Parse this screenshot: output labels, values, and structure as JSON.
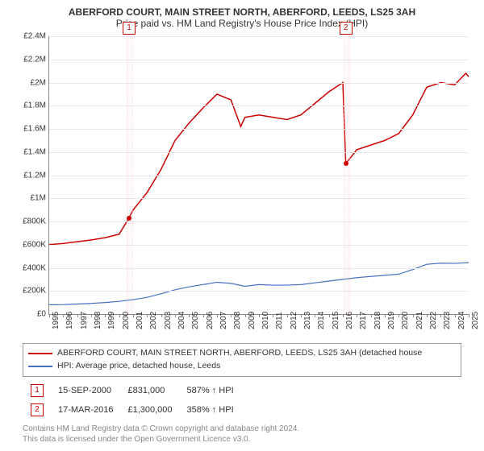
{
  "title": "ABERFORD COURT, MAIN STREET NORTH, ABERFORD, LEEDS, LS25 3AH",
  "subtitle": "Price paid vs. HM Land Registry's House Price Index (HPI)",
  "chart": {
    "type": "line",
    "background_color": "#ffffff",
    "grid_color": "#e8e8e8",
    "axis_color": "#888888",
    "label_fontsize": 10,
    "x": {
      "min": 1995,
      "max": 2025,
      "ticks": [
        1995,
        1996,
        1997,
        1998,
        1999,
        2000,
        2001,
        2002,
        2003,
        2004,
        2005,
        2006,
        2007,
        2008,
        2009,
        2010,
        2011,
        2012,
        2013,
        2014,
        2015,
        2016,
        2017,
        2018,
        2019,
        2020,
        2021,
        2022,
        2023,
        2024,
        2025
      ]
    },
    "y": {
      "min": 0,
      "max": 2400000,
      "ticks": [
        {
          "v": 0,
          "label": "£0"
        },
        {
          "v": 200000,
          "label": "£200K"
        },
        {
          "v": 400000,
          "label": "£400K"
        },
        {
          "v": 600000,
          "label": "£600K"
        },
        {
          "v": 800000,
          "label": "£800K"
        },
        {
          "v": 1000000,
          "label": "£1M"
        },
        {
          "v": 1200000,
          "label": "£1.2M"
        },
        {
          "v": 1400000,
          "label": "£1.4M"
        },
        {
          "v": 1600000,
          "label": "£1.6M"
        },
        {
          "v": 1800000,
          "label": "£1.8M"
        },
        {
          "v": 2000000,
          "label": "£2M"
        },
        {
          "v": 2200000,
          "label": "£2.2M"
        },
        {
          "v": 2400000,
          "label": "£2.4M"
        }
      ]
    },
    "series": [
      {
        "name": "ABERFORD COURT, MAIN STREET NORTH, ABERFORD, LEEDS, LS25 3AH (detached house",
        "color": "#cc0000",
        "width": 1.5,
        "data": [
          [
            1995,
            600000
          ],
          [
            1996,
            610000
          ],
          [
            1997,
            625000
          ],
          [
            1998,
            640000
          ],
          [
            1999,
            660000
          ],
          [
            2000,
            690000
          ],
          [
            2000.71,
            831000
          ],
          [
            2001,
            900000
          ],
          [
            2002,
            1050000
          ],
          [
            2003,
            1250000
          ],
          [
            2004,
            1500000
          ],
          [
            2005,
            1650000
          ],
          [
            2006,
            1780000
          ],
          [
            2007,
            1900000
          ],
          [
            2008,
            1850000
          ],
          [
            2008.7,
            1620000
          ],
          [
            2009,
            1700000
          ],
          [
            2010,
            1720000
          ],
          [
            2011,
            1700000
          ],
          [
            2012,
            1680000
          ],
          [
            2013,
            1720000
          ],
          [
            2014,
            1820000
          ],
          [
            2015,
            1920000
          ],
          [
            2016,
            2000000
          ],
          [
            2016.21,
            1300000
          ],
          [
            2017,
            1420000
          ],
          [
            2018,
            1460000
          ],
          [
            2019,
            1500000
          ],
          [
            2020,
            1560000
          ],
          [
            2021,
            1720000
          ],
          [
            2022,
            1960000
          ],
          [
            2023,
            2000000
          ],
          [
            2024,
            1980000
          ],
          [
            2024.8,
            2080000
          ],
          [
            2025,
            2050000
          ]
        ]
      },
      {
        "name": "HPI: Average price, detached house, Leeds",
        "color": "#4472c4",
        "width": 1.2,
        "data": [
          [
            1995,
            80000
          ],
          [
            1996,
            82000
          ],
          [
            1997,
            87000
          ],
          [
            1998,
            92000
          ],
          [
            1999,
            100000
          ],
          [
            2000,
            110000
          ],
          [
            2001,
            125000
          ],
          [
            2002,
            145000
          ],
          [
            2003,
            175000
          ],
          [
            2004,
            210000
          ],
          [
            2005,
            235000
          ],
          [
            2006,
            255000
          ],
          [
            2007,
            275000
          ],
          [
            2008,
            265000
          ],
          [
            2009,
            240000
          ],
          [
            2010,
            255000
          ],
          [
            2011,
            250000
          ],
          [
            2012,
            250000
          ],
          [
            2013,
            255000
          ],
          [
            2014,
            270000
          ],
          [
            2015,
            285000
          ],
          [
            2016,
            300000
          ],
          [
            2017,
            315000
          ],
          [
            2018,
            325000
          ],
          [
            2019,
            335000
          ],
          [
            2020,
            345000
          ],
          [
            2021,
            385000
          ],
          [
            2022,
            430000
          ],
          [
            2023,
            440000
          ],
          [
            2024,
            438000
          ],
          [
            2025,
            445000
          ]
        ]
      }
    ],
    "sale_markers": [
      {
        "index": "1",
        "x": 2000.71,
        "y": 831000,
        "color": "#cc0000",
        "bar_color": "#ffcccc"
      },
      {
        "index": "2",
        "x": 2016.21,
        "y": 1300000,
        "color": "#cc0000",
        "bar_color": "#ffcccc"
      }
    ]
  },
  "legend": {
    "items": [
      {
        "color": "#cc0000",
        "label": "ABERFORD COURT, MAIN STREET NORTH, ABERFORD, LEEDS, LS25 3AH (detached house"
      },
      {
        "color": "#4472c4",
        "label": "HPI: Average price, detached house, Leeds"
      }
    ]
  },
  "sales": [
    {
      "index": "1",
      "date": "15-SEP-2000",
      "price": "£831,000",
      "vs_hpi": "587% ↑ HPI"
    },
    {
      "index": "2",
      "date": "17-MAR-2016",
      "price": "£1,300,000",
      "vs_hpi": "358% ↑ HPI"
    }
  ],
  "attribution": {
    "line1": "Contains HM Land Registry data © Crown copyright and database right 2024.",
    "line2": "This data is licensed under the Open Government Licence v3.0."
  }
}
